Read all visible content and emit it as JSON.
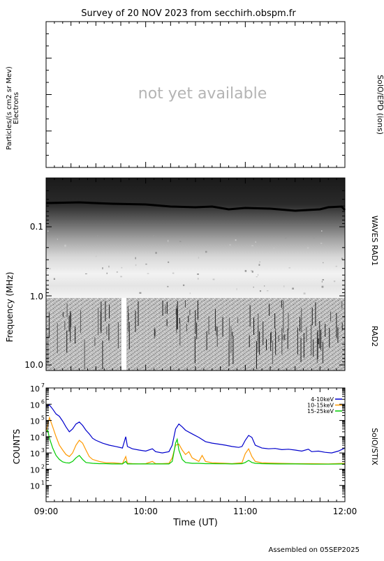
{
  "title": "Survey of 20 NOV 2023 from secchirh.obspm.fr",
  "footer": "Assembled on 05SEP2025",
  "colors": {
    "blue": "#0000cc",
    "orange": "#ff9900",
    "green": "#00cc00",
    "axis": "#000000",
    "placeholder": "#b4b4b4"
  },
  "chart_data": [
    {
      "type": "line",
      "panel": "SolO/EPD (ions)",
      "placeholder_text": "not yet available",
      "ylabel": "Particles/(s cm2 sr Mev)",
      "ylabel2": "Electrons",
      "right_label": "SolO/EPD (ions)",
      "series": []
    },
    {
      "type": "heatmap",
      "panel": "WAVES",
      "ylabel": "Frequency (MHz)",
      "scale": "log",
      "y_inverted": true,
      "yticks": [
        "0.1",
        "1.0",
        "10.0"
      ],
      "sub_panels": [
        {
          "label": "WAVES RAD1",
          "freq_range_mhz": [
            0.02,
            1.0
          ]
        },
        {
          "label": "RAD2",
          "freq_range_mhz": [
            1.0,
            13.0
          ]
        }
      ],
      "data_gap": "09:46"
    },
    {
      "type": "line",
      "panel": "SolO/STIX",
      "ylabel": "COUNTS",
      "xlabel": "Time (UT)",
      "right_label": "SolO/STIX",
      "xlim": [
        "09:00",
        "12:00"
      ],
      "xticks": [
        "09:00",
        "10:00",
        "11:00",
        "12:00"
      ],
      "ylim": [
        1,
        10000000
      ],
      "yscale": "log",
      "yticks": [
        "10^1",
        "10^2",
        "10^3",
        "10^4",
        "10^5",
        "10^6",
        "10^7"
      ],
      "legend_position": "top-right",
      "series": [
        {
          "name": "4-10keV",
          "color": "#0000cc",
          "points": [
            [
              "09:00",
              700000
            ],
            [
              "09:02",
              900000
            ],
            [
              "09:04",
              500000
            ],
            [
              "09:06",
              250000
            ],
            [
              "09:08",
              180000
            ],
            [
              "09:10",
              90000
            ],
            [
              "09:12",
              40000
            ],
            [
              "09:14",
              20000
            ],
            [
              "09:16",
              30000
            ],
            [
              "09:18",
              60000
            ],
            [
              "09:20",
              80000
            ],
            [
              "09:22",
              50000
            ],
            [
              "09:24",
              25000
            ],
            [
              "09:26",
              15000
            ],
            [
              "09:28",
              8000
            ],
            [
              "09:30",
              6000
            ],
            [
              "09:34",
              4000
            ],
            [
              "09:38",
              3000
            ],
            [
              "09:42",
              2500
            ],
            [
              "09:46",
              2000
            ],
            [
              "09:48",
              10000
            ],
            [
              "09:49",
              2500
            ],
            [
              "09:52",
              1800
            ],
            [
              "09:56",
              1500
            ],
            [
              "10:00",
              1300
            ],
            [
              "10:04",
              1800
            ],
            [
              "10:06",
              1200
            ],
            [
              "10:10",
              1000
            ],
            [
              "10:14",
              1200
            ],
            [
              "10:16",
              3000
            ],
            [
              "10:18",
              30000
            ],
            [
              "10:20",
              60000
            ],
            [
              "10:22",
              40000
            ],
            [
              "10:24",
              25000
            ],
            [
              "10:28",
              15000
            ],
            [
              "10:32",
              9000
            ],
            [
              "10:36",
              5000
            ],
            [
              "10:40",
              4000
            ],
            [
              "10:44",
              3500
            ],
            [
              "10:48",
              3000
            ],
            [
              "10:52",
              2500
            ],
            [
              "10:56",
              2200
            ],
            [
              "10:58",
              2500
            ],
            [
              "11:00",
              6000
            ],
            [
              "11:02",
              12000
            ],
            [
              "11:04",
              9000
            ],
            [
              "11:06",
              3000
            ],
            [
              "11:10",
              2000
            ],
            [
              "11:14",
              1800
            ],
            [
              "11:18",
              1900
            ],
            [
              "11:22",
              1600
            ],
            [
              "11:26",
              1700
            ],
            [
              "11:30",
              1500
            ],
            [
              "11:34",
              1300
            ],
            [
              "11:38",
              1700
            ],
            [
              "11:40",
              1200
            ],
            [
              "11:44",
              1300
            ],
            [
              "11:48",
              1100
            ],
            [
              "11:52",
              1000
            ],
            [
              "11:56",
              1300
            ],
            [
              "12:00",
              2000
            ]
          ]
        },
        {
          "name": "10-15keV",
          "color": "#ff9900",
          "points": [
            [
              "09:00",
              20000
            ],
            [
              "09:02",
              150000
            ],
            [
              "09:04",
              40000
            ],
            [
              "09:06",
              10000
            ],
            [
              "09:08",
              3000
            ],
            [
              "09:10",
              1500
            ],
            [
              "09:12",
              800
            ],
            [
              "09:14",
              600
            ],
            [
              "09:16",
              1000
            ],
            [
              "09:18",
              3000
            ],
            [
              "09:20",
              6000
            ],
            [
              "09:22",
              4000
            ],
            [
              "09:24",
              1500
            ],
            [
              "09:26",
              600
            ],
            [
              "09:28",
              400
            ],
            [
              "09:32",
              300
            ],
            [
              "09:36",
              250
            ],
            [
              "09:40",
              250
            ],
            [
              "09:44",
              230
            ],
            [
              "09:46",
              220
            ],
            [
              "09:48",
              600
            ],
            [
              "09:49",
              230
            ],
            [
              "09:52",
              220
            ],
            [
              "09:56",
              210
            ],
            [
              "10:00",
              220
            ],
            [
              "10:04",
              300
            ],
            [
              "10:06",
              220
            ],
            [
              "10:10",
              220
            ],
            [
              "10:14",
              230
            ],
            [
              "10:16",
              500
            ],
            [
              "10:18",
              3000
            ],
            [
              "10:20",
              3500
            ],
            [
              "10:22",
              1500
            ],
            [
              "10:24",
              800
            ],
            [
              "10:26",
              1200
            ],
            [
              "10:28",
              500
            ],
            [
              "10:32",
              300
            ],
            [
              "10:34",
              700
            ],
            [
              "10:36",
              300
            ],
            [
              "10:40",
              250
            ],
            [
              "10:44",
              240
            ],
            [
              "10:48",
              230
            ],
            [
              "10:52",
              220
            ],
            [
              "10:56",
              240
            ],
            [
              "10:58",
              250
            ],
            [
              "11:00",
              900
            ],
            [
              "11:02",
              1800
            ],
            [
              "11:04",
              600
            ],
            [
              "11:06",
              300
            ],
            [
              "11:10",
              250
            ],
            [
              "11:14",
              240
            ],
            [
              "11:20",
              230
            ],
            [
              "11:30",
              220
            ],
            [
              "11:40",
              220
            ],
            [
              "11:50",
              210
            ],
            [
              "12:00",
              230
            ]
          ]
        },
        {
          "name": "15-25keV",
          "color": "#00cc00",
          "points": [
            [
              "09:00",
              20000
            ],
            [
              "09:01",
              25000
            ],
            [
              "09:02",
              8000
            ],
            [
              "09:04",
              2000
            ],
            [
              "09:06",
              700
            ],
            [
              "09:08",
              400
            ],
            [
              "09:10",
              280
            ],
            [
              "09:12",
              250
            ],
            [
              "09:14",
              240
            ],
            [
              "09:16",
              300
            ],
            [
              "09:18",
              500
            ],
            [
              "09:20",
              700
            ],
            [
              "09:22",
              400
            ],
            [
              "09:24",
              260
            ],
            [
              "09:28",
              230
            ],
            [
              "09:32",
              220
            ],
            [
              "09:36",
              220
            ],
            [
              "09:40",
              210
            ],
            [
              "09:44",
              210
            ],
            [
              "09:46",
              210
            ],
            [
              "09:48",
              300
            ],
            [
              "09:49",
              210
            ],
            [
              "09:52",
              210
            ],
            [
              "10:00",
              210
            ],
            [
              "10:06",
              210
            ],
            [
              "10:10",
              210
            ],
            [
              "10:14",
              210
            ],
            [
              "10:16",
              300
            ],
            [
              "10:18",
              4000
            ],
            [
              "10:19",
              7000
            ],
            [
              "10:20",
              1500
            ],
            [
              "10:22",
              400
            ],
            [
              "10:24",
              260
            ],
            [
              "10:28",
              230
            ],
            [
              "10:32",
              230
            ],
            [
              "10:36",
              220
            ],
            [
              "10:40",
              220
            ],
            [
              "10:44",
              215
            ],
            [
              "10:48",
              215
            ],
            [
              "10:52",
              210
            ],
            [
              "10:56",
              215
            ],
            [
              "10:58",
              220
            ],
            [
              "11:00",
              260
            ],
            [
              "11:02",
              350
            ],
            [
              "11:04",
              260
            ],
            [
              "11:06",
              230
            ],
            [
              "11:10",
              220
            ],
            [
              "11:20",
              210
            ],
            [
              "11:30",
              210
            ],
            [
              "11:40",
              205
            ],
            [
              "11:50",
              205
            ],
            [
              "12:00",
              210
            ]
          ]
        }
      ]
    }
  ]
}
